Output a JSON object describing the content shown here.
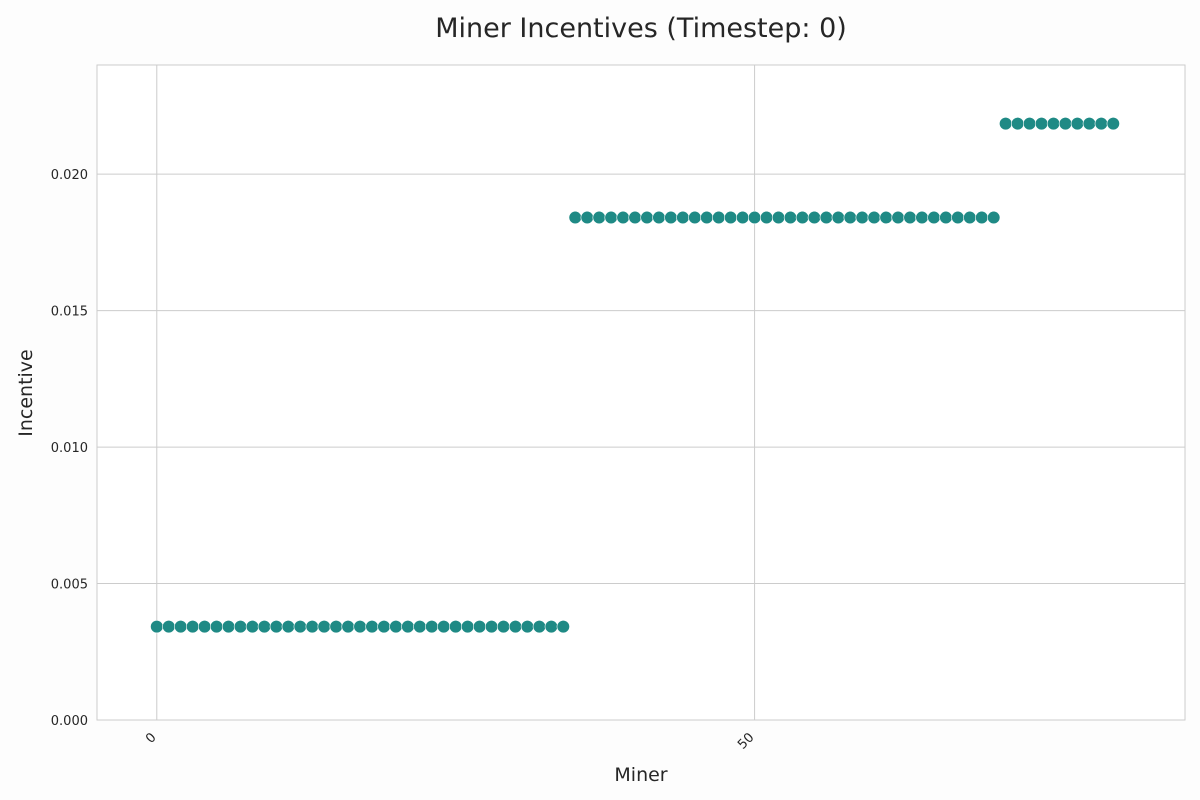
{
  "chart_data": {
    "type": "scatter",
    "title": "Miner Incentives (Timestep: 0)",
    "xlabel": "Miner",
    "ylabel": "Incentive",
    "xlim": [
      -5,
      86
    ],
    "ylim": [
      0,
      0.024
    ],
    "x_ticks": [
      0,
      50
    ],
    "y_ticks": [
      "0.000",
      "0.005",
      "0.010",
      "0.015",
      "0.020"
    ],
    "grid": true,
    "marker_color": "#1f8a85",
    "series": [
      {
        "x": [
          0,
          1,
          2,
          3,
          4,
          5,
          6,
          7,
          8,
          9,
          10,
          11,
          12,
          13,
          14,
          15,
          16,
          17,
          18,
          19,
          20,
          21,
          22,
          23,
          24,
          25,
          26,
          27,
          28,
          29,
          30,
          31,
          32,
          33,
          34,
          35,
          36,
          37,
          38,
          39,
          40,
          41,
          42,
          43,
          44,
          45,
          46,
          47,
          48,
          49,
          50,
          51,
          52,
          53,
          54,
          55,
          56,
          57,
          58,
          59,
          60,
          61,
          62,
          63,
          64,
          65,
          66,
          67,
          68,
          69,
          70,
          71,
          72,
          73,
          74,
          75,
          76,
          77,
          78,
          79,
          80
        ],
        "y": [
          0.00342,
          0.00342,
          0.00342,
          0.00342,
          0.00342,
          0.00342,
          0.00342,
          0.00342,
          0.00342,
          0.00342,
          0.00342,
          0.00342,
          0.00342,
          0.00342,
          0.00342,
          0.00342,
          0.00342,
          0.00342,
          0.00342,
          0.00342,
          0.00342,
          0.00342,
          0.00342,
          0.00342,
          0.00342,
          0.00342,
          0.00342,
          0.00342,
          0.00342,
          0.00342,
          0.00342,
          0.00342,
          0.00342,
          0.00342,
          0.00342,
          0.01841,
          0.01841,
          0.01841,
          0.01841,
          0.01841,
          0.01841,
          0.01841,
          0.01841,
          0.01841,
          0.01841,
          0.01841,
          0.01841,
          0.01841,
          0.01841,
          0.01841,
          0.01841,
          0.01841,
          0.01841,
          0.01841,
          0.01841,
          0.01841,
          0.01841,
          0.01841,
          0.01841,
          0.01841,
          0.01841,
          0.01841,
          0.01841,
          0.01841,
          0.01841,
          0.01841,
          0.01841,
          0.01841,
          0.01841,
          0.01841,
          0.01841,
          0.02185,
          0.02185,
          0.02185,
          0.02185,
          0.02185,
          0.02185,
          0.02185,
          0.02185,
          0.02185,
          0.02185
        ]
      }
    ]
  }
}
